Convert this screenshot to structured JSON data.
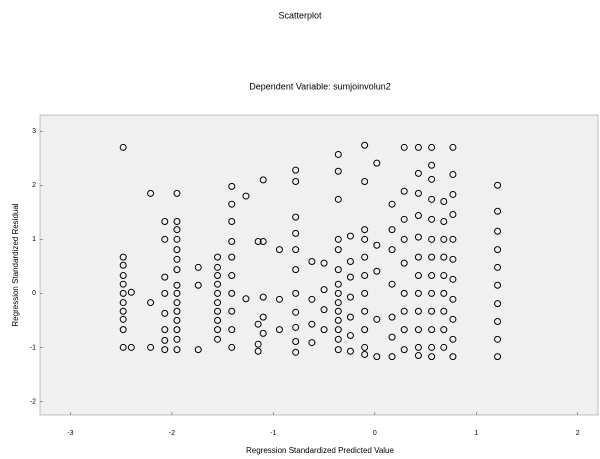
{
  "chart_data": {
    "type": "scatter",
    "title": "Scatterplot",
    "subtitle": "Dependent Variable: sumjoinvolun2",
    "x_label": "Regression Standardized Predicted Value",
    "y_label": "Regression Standardized Residual",
    "xlim": [
      -3.3,
      2.2
    ],
    "ylim": [
      -2.25,
      3.3
    ],
    "xticks": [
      -3,
      -2,
      -1,
      0,
      1,
      2
    ],
    "yticks": [
      3,
      2,
      1,
      0,
      -1,
      -2
    ],
    "color": "#000000",
    "background": "#f0f0f0",
    "x": [
      -2.48,
      -2.48,
      -2.48,
      -2.48,
      -2.48,
      -2.48,
      -2.48,
      -2.48,
      -2.48,
      -2.48,
      -2.48,
      -2.4,
      -2.4,
      -2.21,
      -2.21,
      -2.21,
      -2.07,
      -2.07,
      -2.07,
      -2.07,
      -2.07,
      -2.07,
      -2.07,
      -2.07,
      -1.95,
      -1.95,
      -1.95,
      -1.95,
      -1.95,
      -1.95,
      -1.95,
      -1.95,
      -1.95,
      -1.95,
      -1.95,
      -1.95,
      -1.95,
      -1.95,
      -1.95,
      -1.74,
      -1.74,
      -1.74,
      -1.55,
      -1.55,
      -1.55,
      -1.55,
      -1.55,
      -1.55,
      -1.55,
      -1.55,
      -1.55,
      -1.55,
      -1.41,
      -1.41,
      -1.41,
      -1.41,
      -1.41,
      -1.41,
      -1.41,
      -1.41,
      -1.41,
      -1.41,
      -1.27,
      -1.27,
      -1.15,
      -1.15,
      -1.15,
      -1.15,
      -1.1,
      -1.1,
      -1.1,
      -1.1,
      -1.1,
      -0.94,
      -0.94,
      -0.94,
      -0.78,
      -0.78,
      -0.78,
      -0.78,
      -0.78,
      -0.78,
      -0.78,
      -0.78,
      -0.78,
      -0.78,
      -0.78,
      -0.62,
      -0.62,
      -0.62,
      -0.62,
      -0.5,
      -0.5,
      -0.5,
      -0.5,
      -0.36,
      -0.36,
      -0.36,
      -0.36,
      -0.36,
      -0.36,
      -0.36,
      -0.36,
      -0.36,
      -0.36,
      -0.36,
      -0.36,
      -0.36,
      -0.36,
      -0.24,
      -0.24,
      -0.24,
      -0.24,
      -0.24,
      -0.24,
      -0.24,
      -0.1,
      -0.1,
      -0.1,
      -0.1,
      -0.1,
      -0.1,
      -0.1,
      -0.1,
      -0.1,
      -0.1,
      -0.1,
      0.02,
      0.02,
      0.02,
      0.02,
      0.02,
      0.17,
      0.17,
      0.17,
      0.17,
      0.17,
      0.17,
      0.17,
      0.29,
      0.29,
      0.29,
      0.29,
      0.29,
      0.29,
      0.29,
      0.29,
      0.29,
      0.43,
      0.43,
      0.43,
      0.43,
      0.43,
      0.43,
      0.43,
      0.43,
      0.43,
      0.43,
      0.43,
      0.43,
      0.56,
      0.56,
      0.56,
      0.56,
      0.56,
      0.56,
      0.56,
      0.56,
      0.56,
      0.56,
      0.56,
      0.56,
      0.56,
      0.68,
      0.68,
      0.68,
      0.68,
      0.68,
      0.68,
      0.68,
      0.68,
      0.68,
      0.77,
      0.77,
      0.77,
      0.77,
      0.77,
      0.77,
      0.77,
      0.77,
      0.77,
      0.77,
      0.77,
      1.21,
      1.21,
      1.21,
      1.21,
      1.21,
      1.21,
      1.21,
      1.21,
      1.21,
      1.21
    ],
    "values": [
      2.7,
      0.67,
      0.52,
      0.33,
      0.17,
      0,
      -0.17,
      -0.33,
      -0.48,
      -0.67,
      -1.0,
      0.02,
      -1.0,
      1.85,
      -0.17,
      -1.0,
      1.33,
      1.0,
      0.3,
      0,
      -0.37,
      -0.67,
      -0.87,
      -1.04,
      1.85,
      1.33,
      1.18,
      1.0,
      0.81,
      0.63,
      0.44,
      0.15,
      0,
      -0.17,
      -0.33,
      -0.5,
      -0.67,
      -0.85,
      -1.04,
      0.48,
      0.15,
      -1.04,
      0.67,
      0.48,
      0.33,
      0.17,
      0,
      -0.17,
      -0.33,
      -0.5,
      -0.67,
      -0.85,
      1.98,
      1.65,
      1.33,
      0.96,
      0.67,
      0.33,
      0,
      -0.33,
      -0.67,
      -1.0,
      1.8,
      -0.1,
      0.96,
      -0.57,
      -0.94,
      -1.07,
      2.1,
      0.96,
      -0.07,
      -0.44,
      -0.74,
      0.81,
      -0.11,
      -0.67,
      2.28,
      2.07,
      1.41,
      1.11,
      0.81,
      0.44,
      0,
      -0.35,
      -0.63,
      -0.89,
      -1.09,
      0.59,
      -0.11,
      -0.57,
      -0.91,
      0.56,
      0.07,
      -0.3,
      -0.67,
      2.57,
      2.26,
      1.74,
      1.0,
      0.81,
      0.44,
      0.17,
      0,
      -0.17,
      -0.33,
      -0.5,
      -0.67,
      -0.85,
      -1.04,
      1.06,
      0.59,
      0.3,
      -0.07,
      -0.44,
      -0.78,
      -1.07,
      2.74,
      2.07,
      1.18,
      1.0,
      0.67,
      0.33,
      0,
      -0.33,
      -0.67,
      -1.0,
      -1.13,
      2.41,
      0.89,
      0.41,
      -0.48,
      -1.17,
      1.65,
      1.18,
      0.81,
      0.17,
      -0.44,
      -0.81,
      -1.17,
      2.7,
      1.89,
      1.37,
      1.0,
      0.56,
      0,
      -0.33,
      -0.67,
      -1.04,
      2.7,
      2.22,
      1.85,
      1.44,
      1.04,
      0.67,
      0.33,
      0,
      -0.33,
      -0.67,
      -1.0,
      -1.15,
      2.7,
      2.37,
      2.11,
      1.74,
      1.37,
      1.0,
      0.67,
      0.33,
      0,
      -0.33,
      -0.67,
      -1.0,
      -1.17,
      1.7,
      1.33,
      1.0,
      0.67,
      0.33,
      0,
      -0.33,
      -0.67,
      -1.0,
      2.7,
      2.2,
      1.83,
      1.46,
      1.0,
      0.63,
      0.26,
      -0.11,
      -0.48,
      -0.85,
      -1.17,
      2.0,
      1.52,
      1.15,
      0.81,
      0.48,
      0.15,
      -0.19,
      -0.52,
      -0.85,
      -1.17
    ]
  }
}
